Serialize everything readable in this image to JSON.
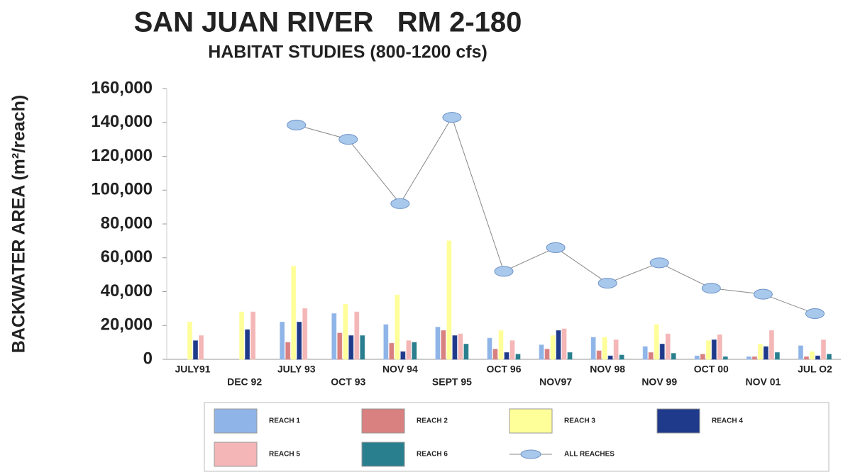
{
  "chart_data": {
    "type": "bar",
    "title": "SAN JUAN RIVER   RM 2-180",
    "subtitle": "HABITAT STUDIES (800-1200 cfs)",
    "y_label": "BACKWATER AREA (m²/reach)",
    "categories": [
      "JULY91",
      "DEC 92",
      "JULY 93",
      "OCT 93",
      "NOV 94",
      "SEPT 95",
      "OCT 96",
      "NOV97",
      "NOV 98",
      "NOV 99",
      "OCT 00",
      "NOV 01",
      "JUL O2"
    ],
    "ylim": [
      0,
      160000
    ],
    "yticks": [
      0,
      {
        "value": 20000,
        "label": "20,000"
      },
      {
        "value": 40000,
        "label": "40,000"
      },
      {
        "value": 60000,
        "label": "60,000"
      },
      {
        "value": 80000,
        "label": "80,000"
      },
      {
        "value": 100000,
        "label": "100,000"
      },
      {
        "value": 120000,
        "label": "120,000"
      },
      {
        "value": 140000,
        "label": "140,000"
      },
      {
        "value": 160000,
        "label": "160,000"
      }
    ],
    "grid": false,
    "legend": "bottom",
    "series": [
      {
        "name": "REACH 1",
        "color": "#8fb4e8",
        "kind": "bar",
        "values": [
          null,
          null,
          22000,
          27000,
          20500,
          19000,
          12500,
          8500,
          13000,
          7500,
          2000,
          1500,
          8000
        ]
      },
      {
        "name": "REACH 2",
        "color": "#d98080",
        "kind": "bar",
        "values": [
          null,
          null,
          10000,
          15500,
          9500,
          17000,
          6000,
          6000,
          5000,
          4000,
          3000,
          1500,
          1500
        ]
      },
      {
        "name": "REACH 3",
        "color": "#ffff99",
        "kind": "bar",
        "values": [
          22000,
          28000,
          55000,
          32500,
          38000,
          70000,
          17000,
          14000,
          13000,
          20500,
          11000,
          9000,
          4500
        ]
      },
      {
        "name": "REACH 4",
        "color": "#1f3a8a",
        "kind": "bar",
        "values": [
          11000,
          17500,
          22000,
          14000,
          4500,
          14000,
          4000,
          17000,
          2000,
          9000,
          11500,
          7500,
          2000
        ]
      },
      {
        "name": "REACH 5",
        "color": "#f4b6b6",
        "kind": "bar",
        "values": [
          14000,
          28000,
          30000,
          28000,
          11000,
          15000,
          11000,
          18000,
          11500,
          15000,
          14500,
          17000,
          11500
        ]
      },
      {
        "name": "REACH 6",
        "color": "#2a7f8f",
        "kind": "bar",
        "values": [
          null,
          null,
          null,
          14000,
          10000,
          9000,
          3000,
          4000,
          2500,
          3500,
          1500,
          4000,
          3000
        ]
      },
      {
        "name": "ALL REACHES",
        "color": "#a8c8ec",
        "kind": "line",
        "values": [
          null,
          null,
          138500,
          130000,
          92000,
          143000,
          52000,
          66000,
          45000,
          57000,
          42000,
          38500,
          27000
        ]
      }
    ]
  }
}
